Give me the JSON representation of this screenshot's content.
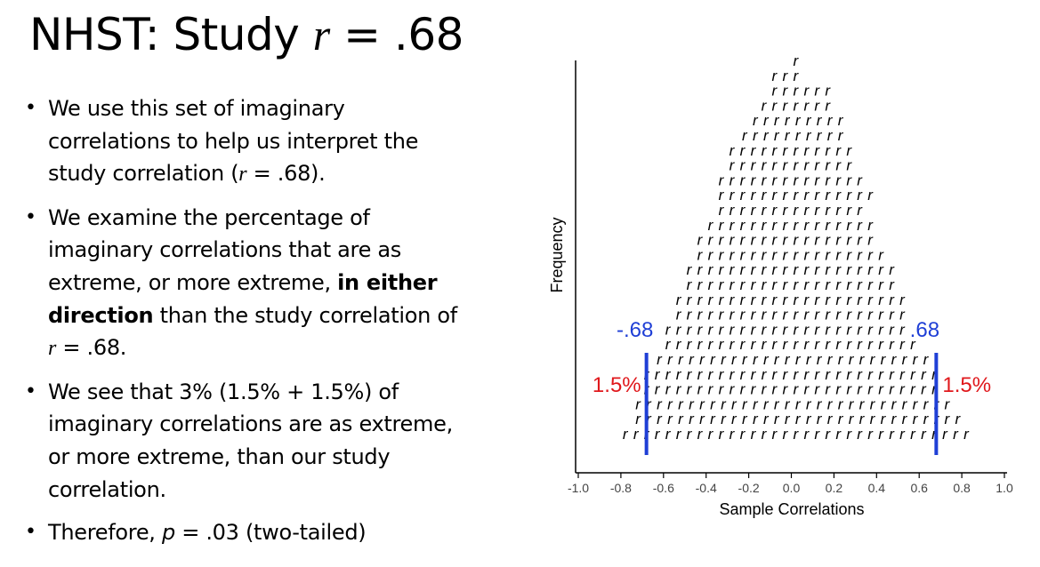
{
  "slide": {
    "title_prefix": "NHST: Study ",
    "title_var": "r",
    "title_suffix": " = .68"
  },
  "bullets": [
    {
      "p1": "We use this set of imaginary correlations to help us interpret the study correlation (",
      "var": "r",
      "p2": " = .68)."
    },
    {
      "p1": "We examine the percentage of imaginary correlations that are as extreme, or more extreme, ",
      "bold": "in either direction",
      "p2": " than the study correlation of ",
      "var": "r",
      "p3": " = .68."
    },
    {
      "p1": "We see that 3% (1.5% + 1.5%) of imaginary correlations are as extreme, or more extreme, than our study correlation."
    },
    {
      "p1": "Therefore, ",
      "var": "p",
      "p2": " = .03 (two-tailed)"
    }
  ],
  "chart_data": {
    "type": "dotplot",
    "xlabel": "Sample Correlations",
    "ylabel": "Frequency",
    "xlim": [
      -1.0,
      1.0
    ],
    "tick_labels": [
      "-1.0",
      "-0.8",
      "-0.6",
      "-0.4",
      "-0.2",
      "0.0",
      "0.2",
      "0.4",
      "0.6",
      "0.8",
      "1.0"
    ],
    "tick_values": [
      -1.0,
      -0.8,
      -0.6,
      -0.4,
      -0.2,
      0.0,
      0.2,
      0.4,
      0.6,
      0.8,
      1.0
    ],
    "marker_symbol": "r",
    "rows": [
      {
        "range": [
          0.02,
          0.02
        ]
      },
      {
        "range": [
          -0.08,
          0.02
        ]
      },
      {
        "range": [
          -0.08,
          0.18
        ]
      },
      {
        "range": [
          -0.13,
          0.18
        ]
      },
      {
        "range": [
          -0.17,
          0.22
        ]
      },
      {
        "range": [
          -0.22,
          0.22
        ]
      },
      {
        "range": [
          -0.28,
          0.28
        ]
      },
      {
        "range": [
          -0.28,
          0.28
        ]
      },
      {
        "range": [
          -0.33,
          0.33
        ]
      },
      {
        "range": [
          -0.33,
          0.37
        ]
      },
      {
        "range": [
          -0.33,
          0.33
        ]
      },
      {
        "range": [
          -0.38,
          0.38
        ]
      },
      {
        "range": [
          -0.43,
          0.38
        ]
      },
      {
        "range": [
          -0.43,
          0.43
        ]
      },
      {
        "range": [
          -0.48,
          0.48
        ]
      },
      {
        "range": [
          -0.48,
          0.48
        ]
      },
      {
        "range": [
          -0.53,
          0.53
        ]
      },
      {
        "range": [
          -0.53,
          0.53
        ]
      },
      {
        "range": [
          -0.58,
          0.53
        ]
      },
      {
        "range": [
          -0.58,
          0.58
        ]
      },
      {
        "range": [
          -0.62,
          0.62
        ]
      },
      {
        "range": [
          -0.68,
          0.68
        ]
      },
      {
        "range": [
          -0.68,
          0.68
        ]
      },
      {
        "range": [
          -0.72,
          0.72
        ]
      },
      {
        "range": [
          -0.72,
          0.78
        ]
      },
      {
        "range": [
          -0.78,
          0.82
        ]
      }
    ],
    "cutoffs": [
      {
        "value": -0.68,
        "label": "-.68",
        "percent_label": "1.5%",
        "side": "left"
      },
      {
        "value": 0.68,
        "label": ".68",
        "percent_label": "1.5%",
        "side": "right"
      }
    ],
    "colors": {
      "cutoff": "#1f3fd6",
      "percent": "#e0181c",
      "axis": "#000000",
      "tick_label": "#444444"
    }
  }
}
